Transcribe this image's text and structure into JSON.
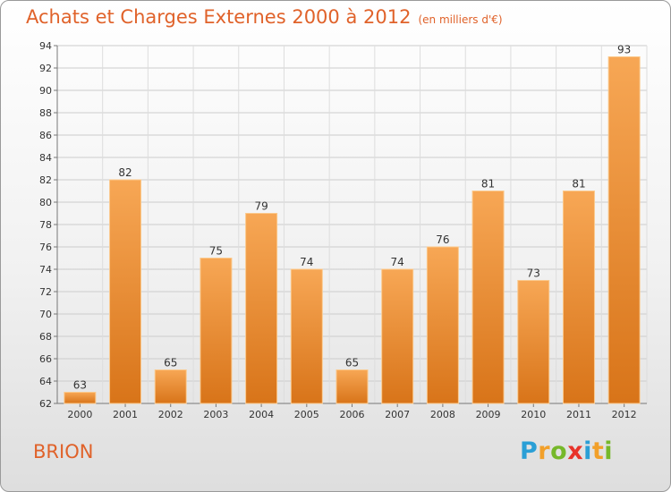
{
  "header": {
    "title": "Achats et Charges Externes 2000 à 2012",
    "subtitle": "(en milliers d'€)"
  },
  "footer": {
    "commune": "BRION",
    "logo_text": "Proxiti"
  },
  "colors": {
    "bar_light": "#f6a351",
    "bar_dark": "#d77218",
    "title": "#e0622a",
    "grid": "#c8c8c8"
  },
  "chart_data": {
    "type": "bar",
    "title": "Achats et Charges Externes 2000 à 2012",
    "subtitle": "(en milliers d'€)",
    "categories": [
      "2000",
      "2001",
      "2002",
      "2003",
      "2004",
      "2005",
      "2006",
      "2007",
      "2008",
      "2009",
      "2010",
      "2011",
      "2012"
    ],
    "values": [
      63,
      82,
      65,
      75,
      79,
      74,
      65,
      74,
      76,
      81,
      73,
      81,
      93
    ],
    "ylim": [
      62,
      94
    ],
    "yticks": [
      62,
      64,
      66,
      68,
      70,
      72,
      74,
      76,
      78,
      80,
      82,
      84,
      86,
      88,
      90,
      92,
      94
    ],
    "grid": true,
    "xlabel": "",
    "ylabel": ""
  }
}
